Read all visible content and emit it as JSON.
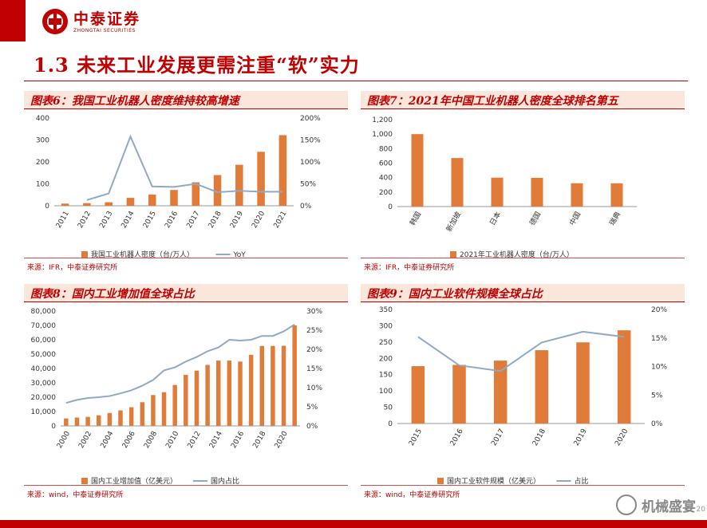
{
  "header": {
    "logo_cn": "中泰证券",
    "logo_en": "ZHONGTAI SECURITIES",
    "page_title": "1.3 未来工业发展更需注重“软”实力"
  },
  "footer": {
    "watermark": "机械盛宴",
    "page_number": "20"
  },
  "colors": {
    "bar": "#e07b39",
    "line": "#8fa9c9",
    "brand": "#c00000"
  },
  "chart_data": [
    {
      "id": "chart6",
      "heading": "图表6：我国工业机器人密度维持较高增速",
      "type": "bar+line",
      "categories": [
        "2011",
        "2012",
        "2013",
        "2014",
        "2015",
        "2016",
        "2017",
        "2018",
        "2019",
        "2020",
        "2021"
      ],
      "series": [
        {
          "name": "我国工业机器人密度（台/万人）",
          "kind": "bar",
          "axis": "left",
          "values": [
            10,
            12,
            16,
            36,
            51,
            72,
            107,
            140,
            187,
            246,
            322
          ]
        },
        {
          "name": "YoY",
          "kind": "line",
          "axis": "right",
          "values": [
            null,
            13,
            28,
            158,
            44,
            43,
            50,
            31,
            34,
            32,
            32
          ]
        }
      ],
      "ylim": [
        0,
        400
      ],
      "yticks": [
        0,
        100,
        200,
        300,
        400
      ],
      "y2lim": [
        0,
        200
      ],
      "y2ticks": [
        0,
        50,
        100,
        150,
        200
      ],
      "y2suffix": "%",
      "source": "来源：IFR，中泰证券研究所"
    },
    {
      "id": "chart7",
      "heading": "图表7：2021年中国工业机器人密度全球排名第五",
      "type": "bar",
      "categories": [
        "韩国",
        "新加坡",
        "日本",
        "德国",
        "中国",
        "瑞典"
      ],
      "series": [
        {
          "name": "2021年工业机器人密度（台/万人）",
          "kind": "bar",
          "axis": "left",
          "values": [
            1000,
            670,
            399,
            397,
            322,
            321
          ]
        }
      ],
      "ylim": [
        0,
        1200
      ],
      "yticks": [
        0,
        200,
        400,
        600,
        800,
        1000,
        1200
      ],
      "source": "来源：IFR，中泰证券研究所"
    },
    {
      "id": "chart8",
      "heading": "图表8：国内工业增加值全球占比",
      "type": "bar+line",
      "categories": [
        "2000",
        "2001",
        "2002",
        "2003",
        "2004",
        "2005",
        "2006",
        "2007",
        "2008",
        "2009",
        "2010",
        "2011",
        "2012",
        "2013",
        "2014",
        "2015",
        "2016",
        "2017",
        "2018",
        "2019",
        "2020",
        "2021"
      ],
      "xticks_shown": [
        "2000",
        "2002",
        "2004",
        "2006",
        "2008",
        "2010",
        "2012",
        "2014",
        "2016",
        "2018",
        "2020"
      ],
      "series": [
        {
          "name": "国内工业增加值（亿美元）",
          "kind": "bar",
          "axis": "left",
          "values": [
            5200,
            5800,
            6300,
            7400,
            9000,
            10800,
            13000,
            16500,
            21500,
            23500,
            28500,
            35500,
            38500,
            42500,
            45500,
            45500,
            44800,
            49500,
            55700,
            55700,
            55800,
            70000
          ]
        },
        {
          "name": "国内占比",
          "kind": "line",
          "axis": "right",
          "values": [
            6.0,
            6.8,
            7.3,
            7.5,
            7.8,
            8.5,
            9.3,
            10.5,
            12.0,
            14.5,
            15.3,
            16.8,
            18.0,
            19.5,
            20.5,
            22.5,
            22.3,
            22.5,
            23.5,
            23.5,
            24.7,
            26.5
          ]
        }
      ],
      "ylim": [
        0,
        80000
      ],
      "yticks": [
        0,
        10000,
        20000,
        30000,
        40000,
        50000,
        60000,
        70000,
        80000
      ],
      "y2lim": [
        0,
        30
      ],
      "y2ticks": [
        0,
        5,
        10,
        15,
        20,
        25,
        30
      ],
      "y2suffix": "%",
      "source": "来源：wind，中泰证券研究所"
    },
    {
      "id": "chart9",
      "heading": "图表9：国内工业软件规模全球占比",
      "type": "bar+line",
      "categories": [
        "2015",
        "2016",
        "2017",
        "2018",
        "2019",
        "2020"
      ],
      "series": [
        {
          "name": "国内工业软件规模（亿美元）",
          "kind": "bar",
          "axis": "left",
          "values": [
            176,
            180,
            193,
            225,
            249,
            286
          ]
        },
        {
          "name": "占比",
          "kind": "line",
          "axis": "right",
          "values": [
            15.2,
            10.2,
            9.2,
            14.2,
            16.1,
            15.2
          ]
        }
      ],
      "ylim": [
        0,
        350
      ],
      "yticks": [
        0,
        50,
        100,
        150,
        200,
        250,
        300,
        350
      ],
      "y2lim": [
        0,
        20
      ],
      "y2ticks": [
        0,
        5,
        10,
        15,
        20
      ],
      "y2suffix": "%",
      "source": "来源：wind，中泰证券研究所"
    }
  ]
}
